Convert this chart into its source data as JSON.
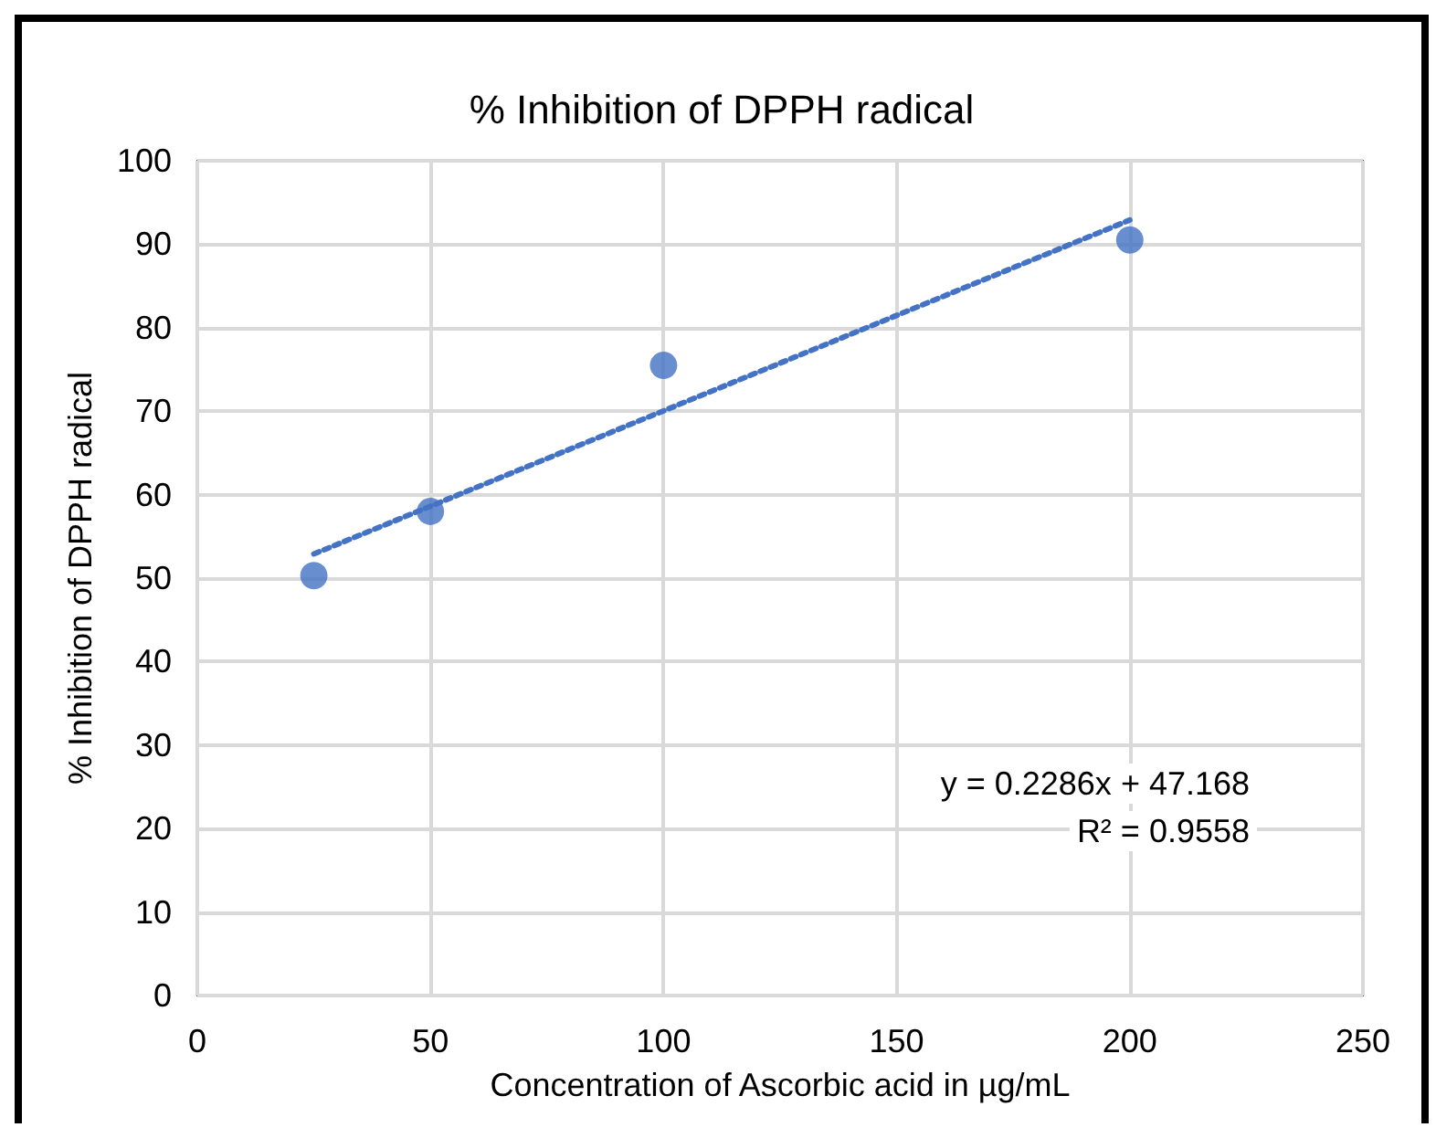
{
  "chart_data": {
    "type": "scatter",
    "title": "% Inhibition of DPPH radical",
    "xlabel": "Concentration of Ascorbic acid in µg/mL",
    "ylabel": "% Inhibition of DPPH radical",
    "series": [
      {
        "color": "#4472c4",
        "marker": "circle",
        "x": [
          25,
          50,
          100,
          200
        ],
        "values": [
          50.3,
          58,
          75.5,
          90.5
        ]
      },
      {
        "type": "line",
        "color": "#4472c4",
        "marker": "none",
        "line_style": "dotted",
        "x": [
          25,
          200
        ],
        "values": [
          52.9,
          92.9
        ]
      }
    ],
    "xlim": [
      0,
      250
    ],
    "xticks": [
      0,
      50,
      100,
      150,
      200,
      250
    ],
    "ylim": [
      0,
      100
    ],
    "yticks": [
      0,
      10,
      20,
      30,
      40,
      50,
      60,
      70,
      80,
      90,
      100
    ],
    "grid": true,
    "annotations": [
      "y = 0.2286x + 47.168",
      "R² = 0.9558"
    ]
  }
}
